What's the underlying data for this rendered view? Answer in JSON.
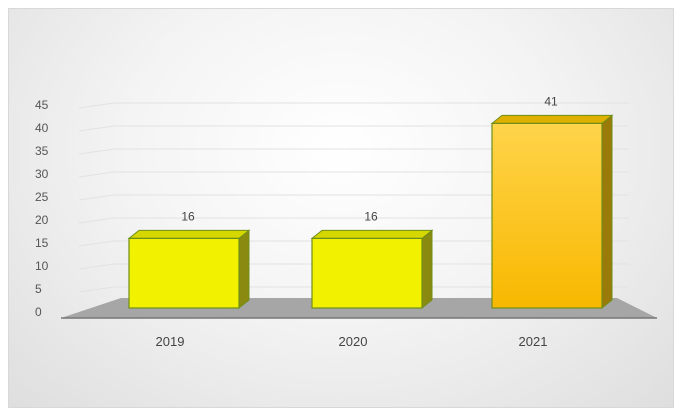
{
  "chart_data": {
    "type": "bar",
    "style": "3d",
    "categories": [
      "2019",
      "2020",
      "2021"
    ],
    "values": [
      16,
      16,
      41
    ],
    "data_labels": [
      "16",
      "16",
      "41"
    ],
    "y_ticks": [
      "0",
      "5",
      "10",
      "15",
      "20",
      "25",
      "30",
      "35",
      "40",
      "45"
    ],
    "ylim": [
      0,
      45
    ],
    "grid": true,
    "legend": "none",
    "title": "",
    "xlabel": "",
    "ylabel": "",
    "colors": {
      "bar_front": "#f2f200",
      "bar_front_tall_top": "#ffd44a",
      "bar_front_tall_bottom": "#f8b800",
      "bar_side": "#8a8a10",
      "bar_side_tall": "#9a7a08",
      "bar_top": "#d6d600",
      "bar_top_tall": "#e0b000",
      "bar_edge": "#6f8f1a",
      "floor": "#a6a6a6",
      "gridline": "#e2e2e2"
    }
  }
}
